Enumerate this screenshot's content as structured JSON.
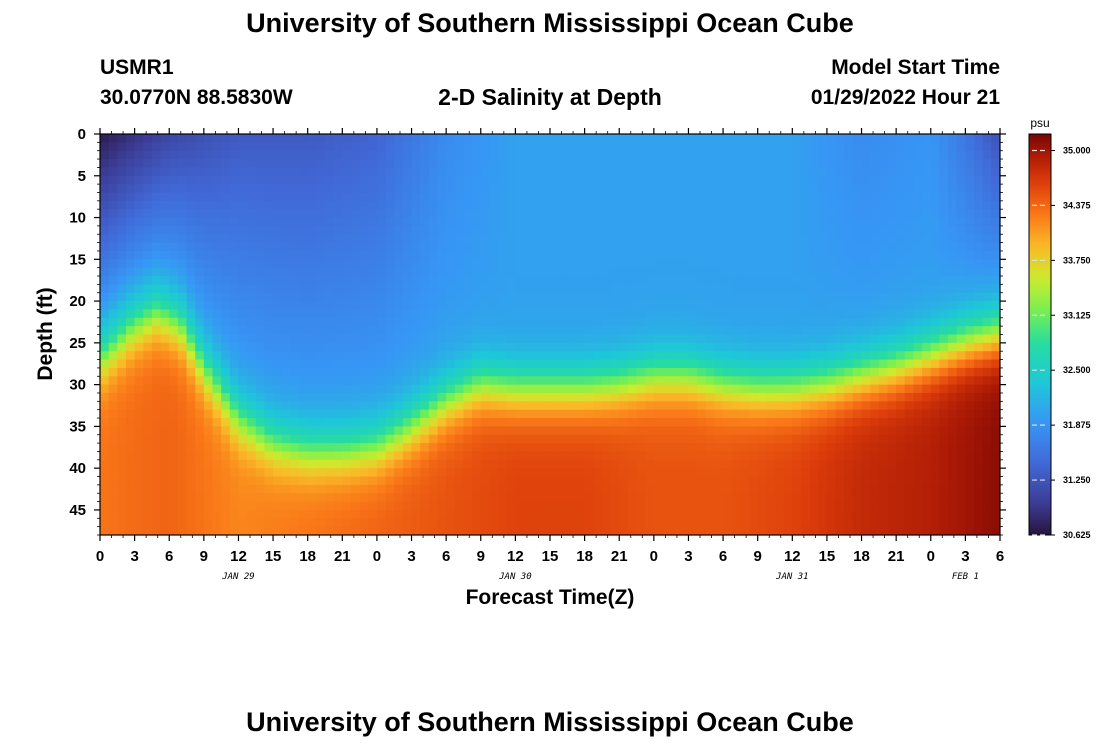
{
  "title": "University of Southern Mississippi Ocean Cube",
  "bottom_title": "University of Southern Mississippi Ocean Cube",
  "station": {
    "id": "USMR1",
    "coords": "30.0770N  88.5830W"
  },
  "plot_title": "2-D Salinity at Depth",
  "model_start": {
    "label": "Model Start Time",
    "value": "01/29/2022 Hour 21"
  },
  "chart_data": {
    "type": "heatmap",
    "xlabel": "Forecast Time(Z)",
    "ylabel": "Depth (ft)",
    "x_tick_labels": [
      "0",
      "3",
      "6",
      "9",
      "12",
      "15",
      "18",
      "21",
      "0",
      "3",
      "6",
      "9",
      "12",
      "15",
      "18",
      "21",
      "0",
      "3",
      "6",
      "9",
      "12",
      "15",
      "18",
      "21",
      "0",
      "3",
      "6"
    ],
    "x_date_labels": [
      {
        "text": "JAN 29",
        "hour_index": 4
      },
      {
        "text": "JAN 30",
        "hour_index": 12
      },
      {
        "text": "JAN 31",
        "hour_index": 20
      },
      {
        "text": "FEB 1",
        "hour_index": 25
      }
    ],
    "x_range_hours": [
      0,
      78
    ],
    "y_ticks": [
      0,
      5,
      10,
      15,
      20,
      25,
      30,
      35,
      40,
      45
    ],
    "y_range_ft": [
      0,
      48
    ],
    "colorbar": {
      "unit": "psu",
      "min": 30.625,
      "max": 35.1875,
      "tick_values": [
        35.0,
        34.375,
        33.75,
        33.125,
        32.5,
        31.875,
        31.25,
        30.625
      ],
      "tick_labels": [
        "35.000",
        "34.375",
        "33.750",
        "33.125",
        "32.500",
        "31.875",
        "31.250",
        "30.625"
      ]
    },
    "fresh_salt_interface": {
      "hours": [
        0,
        3,
        5,
        7,
        9,
        12,
        15,
        18,
        21,
        24,
        27,
        30,
        33,
        36,
        39,
        42,
        45,
        48,
        51,
        54,
        57,
        60,
        63,
        66,
        69,
        72,
        75,
        78
      ],
      "depth_ft": [
        27,
        23,
        21.5,
        23,
        28,
        34,
        37,
        38,
        38,
        37.5,
        35,
        32,
        30,
        30.5,
        30.5,
        30.5,
        30,
        29,
        29,
        30,
        30.5,
        30.5,
        30,
        29,
        28,
        26.5,
        25,
        24
      ]
    },
    "surface_salinity_psu": {
      "hours": [
        0,
        6,
        12,
        18,
        24,
        30,
        36,
        42,
        48,
        54,
        60,
        66,
        72,
        75,
        78
      ],
      "values": [
        30.7,
        31.1,
        31.3,
        31.3,
        31.4,
        31.8,
        32.0,
        32.0,
        32.0,
        32.0,
        32.0,
        31.8,
        31.9,
        31.6,
        31.2
      ]
    },
    "bottom_salinity_psu": {
      "hours": [
        0,
        6,
        12,
        18,
        24,
        30,
        36,
        42,
        48,
        54,
        60,
        66,
        72,
        78
      ],
      "values": [
        34.3,
        34.4,
        34.2,
        34.3,
        34.4,
        34.5,
        34.6,
        34.6,
        34.5,
        34.5,
        34.6,
        34.8,
        34.9,
        35.1
      ]
    }
  }
}
